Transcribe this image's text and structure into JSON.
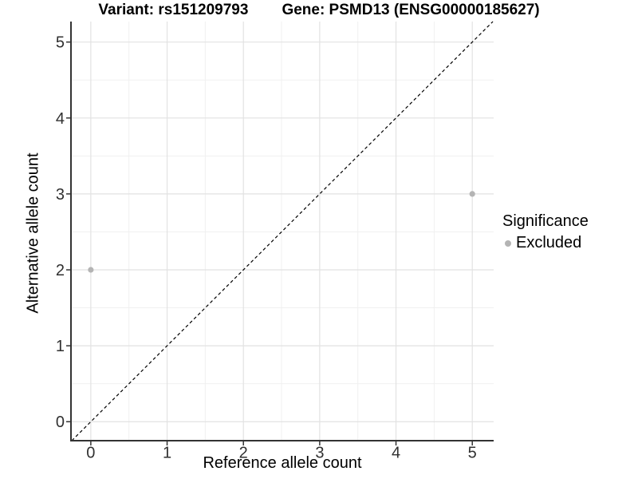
{
  "chart_data": {
    "type": "scatter",
    "titles": {
      "left": "Variant: rs151209793",
      "right": "Gene: PSMD13 (ENSG00000185627)"
    },
    "xlabel": "Reference allele count",
    "ylabel": "Alternative allele count",
    "xlim": [
      -0.26,
      5.28
    ],
    "ylim": [
      -0.25,
      5.27
    ],
    "xticks": [
      0,
      1,
      2,
      3,
      4,
      5
    ],
    "yticks": [
      0,
      1,
      2,
      3,
      4,
      5
    ],
    "grid": {
      "major": true,
      "minor": true,
      "major_color": "#e2e2e2",
      "minor_color": "#f0f0f0"
    },
    "axis_color": "#333333",
    "tick_label_color": "#303030",
    "reference_line": {
      "slope": 1,
      "intercept": 0,
      "linetype": "dashed",
      "color": "#000000"
    },
    "series": [
      {
        "name": "Excluded",
        "color": "#b4b4b4",
        "points": [
          [
            0,
            2
          ],
          [
            5,
            3
          ]
        ]
      }
    ],
    "legend": {
      "title": "Significance",
      "position": "right",
      "entries": [
        {
          "label": "Excluded",
          "color": "#b4b4b4",
          "marker": "circle"
        }
      ]
    }
  }
}
